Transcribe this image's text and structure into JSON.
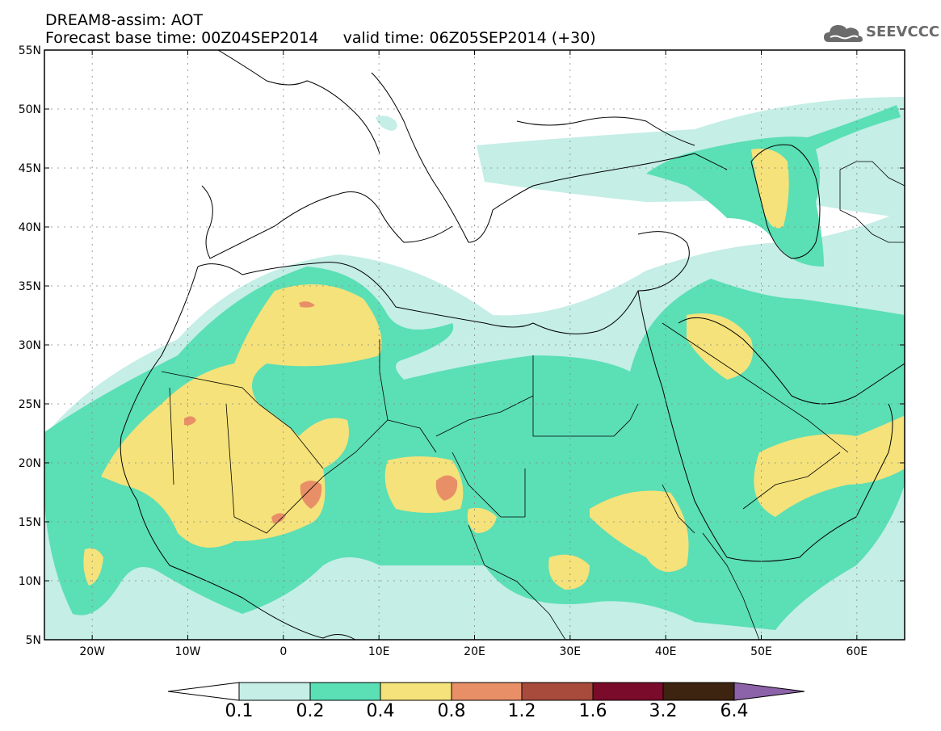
{
  "header": {
    "line1": "DREAM8-assim: AOT",
    "line2": "Forecast base time: 00Z04SEP2014     valid time: 06Z05SEP2014 (+30)"
  },
  "logo": {
    "text": "SEEVCCC",
    "icon": "cloud-icon"
  },
  "map": {
    "region": {
      "lon_min": -25,
      "lon_max": 65,
      "lat_min": 5,
      "lat_max": 55
    },
    "lat_ticks": [
      "55N",
      "50N",
      "45N",
      "40N",
      "35N",
      "30N",
      "25N",
      "20N",
      "15N",
      "10N",
      "5N"
    ],
    "lon_ticks": [
      "20W",
      "10W",
      "0",
      "10E",
      "20E",
      "30E",
      "40E",
      "50E",
      "60E"
    ]
  },
  "colorbar": {
    "labels": [
      "0.1",
      "0.2",
      "0.4",
      "0.8",
      "1.2",
      "1.6",
      "3.2",
      "6.4"
    ],
    "colors": [
      "#ffffff",
      "#c4eee6",
      "#5bdfb5",
      "#f5e27a",
      "#e88f68",
      "#a84b3c",
      "#7a0b2a",
      "#3d2410",
      "#8c62a8"
    ]
  }
}
